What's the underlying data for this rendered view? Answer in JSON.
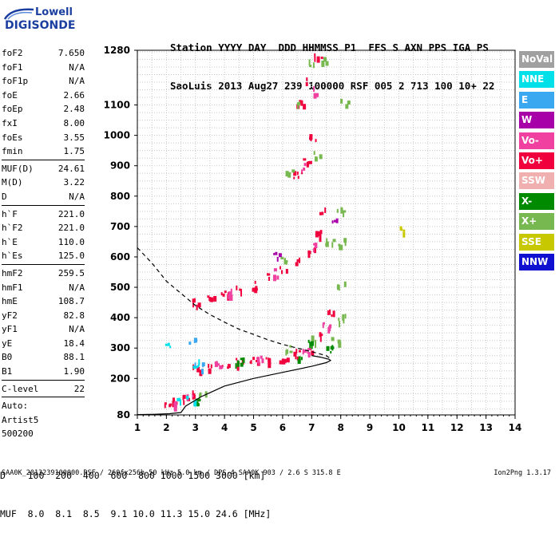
{
  "logo": {
    "line1": "Lowell",
    "line2": "DIGISONDE"
  },
  "header": {
    "line1": "Station YYYY DAY  DDD HHMMSS P1  FFS S AXN PPS IGA PS",
    "line2": "SaoLuis 2013 Aug27 239 100000 RSF 005 2 713 100 10+ 22"
  },
  "params": {
    "group1": [
      {
        "k": "foF2",
        "v": "7.650"
      },
      {
        "k": "foF1",
        "v": "N/A"
      },
      {
        "k": "foF1p",
        "v": "N/A"
      },
      {
        "k": "foE",
        "v": "2.66"
      },
      {
        "k": "foEp",
        "v": "2.48"
      },
      {
        "k": "fxI",
        "v": "8.00"
      },
      {
        "k": "foEs",
        "v": "3.55"
      },
      {
        "k": "fmin",
        "v": "1.75"
      }
    ],
    "group2": [
      {
        "k": "MUF(D)",
        "v": "24.61"
      },
      {
        "k": "M(D)",
        "v": "3.22"
      },
      {
        "k": "D",
        "v": "N/A"
      }
    ],
    "group3": [
      {
        "k": "h`F",
        "v": "221.0"
      },
      {
        "k": "h`F2",
        "v": "221.0"
      },
      {
        "k": "h`E",
        "v": "110.0"
      },
      {
        "k": "h`Es",
        "v": "125.0"
      }
    ],
    "group4": [
      {
        "k": "hmF2",
        "v": "259.5"
      },
      {
        "k": "hmF1",
        "v": "N/A"
      },
      {
        "k": "hmE",
        "v": "108.7"
      },
      {
        "k": "yF2",
        "v": "82.8"
      },
      {
        "k": "yF1",
        "v": "N/A"
      },
      {
        "k": "yE",
        "v": "18.4"
      },
      {
        "k": "B0",
        "v": "88.1"
      },
      {
        "k": "B1",
        "v": "1.90"
      }
    ],
    "group5": [
      {
        "k": "C-level",
        "v": "22"
      }
    ],
    "auto": [
      "Auto:",
      "Artist5",
      "500200"
    ]
  },
  "legend": [
    {
      "label": "NoVal",
      "color": "#a0a0a0"
    },
    {
      "label": "NNE",
      "color": "#00e0e8"
    },
    {
      "label": "E",
      "color": "#3aa8f0"
    },
    {
      "label": "W",
      "color": "#a800a8"
    },
    {
      "label": "Vo-",
      "color": "#f040a0"
    },
    {
      "label": "Vo+",
      "color": "#f0003c"
    },
    {
      "label": "SSW",
      "color": "#f0b0b0"
    },
    {
      "label": "X-",
      "color": "#008a00"
    },
    {
      "label": "X+",
      "color": "#78b850"
    },
    {
      "label": "SSE",
      "color": "#c8c800"
    },
    {
      "label": "NNW",
      "color": "#1010d0"
    }
  ],
  "bottom": {
    "line1": "D    100  200  400  600  800 1000 1500 3000 [km]",
    "line2": "MUF  8.0  8.1  8.5  9.1 10.0 11.3 15.0 24.6 [MHz]"
  },
  "footer": "SAA0K_2013239100000.RSF / 260fx256h 50 kHz 5.0 km / DPS-4 SAA0K 903 / 2.6 S 315.8 E",
  "footer_right": "Ion2Png 1.3.17",
  "chart_data": {
    "type": "scatter",
    "x": {
      "ticks": [
        1,
        2,
        3,
        4,
        5,
        6,
        7,
        8,
        9,
        10,
        11,
        12,
        13,
        14
      ],
      "range": [
        1,
        14
      ]
    },
    "y": {
      "ticks": [
        80,
        200,
        300,
        400,
        500,
        600,
        700,
        800,
        900,
        1000,
        1100,
        1280
      ],
      "range": [
        80,
        1280
      ]
    },
    "grid": true,
    "series": [
      {
        "style": "solid",
        "points": [
          [
            1.0,
            81
          ],
          [
            1.6,
            82
          ],
          [
            2.1,
            84
          ],
          [
            2.5,
            88
          ],
          [
            2.66,
            109
          ],
          [
            3.2,
            140
          ],
          [
            4.0,
            175
          ],
          [
            5.0,
            200
          ],
          [
            6.0,
            220
          ],
          [
            7.0,
            240
          ],
          [
            7.5,
            252
          ],
          [
            7.65,
            259
          ],
          [
            7.6,
            263
          ],
          [
            7.3,
            270
          ],
          [
            7.0,
            275
          ]
        ]
      },
      {
        "style": "dashed",
        "points": [
          [
            1.0,
            630
          ],
          [
            1.5,
            580
          ],
          [
            2.0,
            520
          ],
          [
            2.5,
            480
          ],
          [
            3.0,
            440
          ],
          [
            3.5,
            410
          ],
          [
            4.0,
            385
          ],
          [
            4.5,
            362
          ],
          [
            5.0,
            345
          ],
          [
            5.5,
            327
          ],
          [
            6.0,
            312
          ],
          [
            6.5,
            300
          ],
          [
            7.0,
            288
          ],
          [
            7.5,
            275
          ],
          [
            7.65,
            265
          ]
        ]
      }
    ],
    "echo_clusters": [
      {
        "legend": "Vo+",
        "points": [
          [
            2.0,
            120
          ],
          [
            2.3,
            125
          ],
          [
            2.6,
            135
          ],
          [
            2.9,
            150
          ],
          [
            3.0,
            240
          ],
          [
            3.5,
            245
          ],
          [
            4.0,
            250
          ],
          [
            4.5,
            255
          ],
          [
            5.0,
            260
          ],
          [
            5.5,
            265
          ],
          [
            6.0,
            272
          ],
          [
            6.5,
            285
          ],
          [
            7.0,
            300
          ],
          [
            7.3,
            340
          ],
          [
            7.6,
            420
          ],
          [
            3.0,
            455
          ],
          [
            3.5,
            470
          ],
          [
            4.0,
            480
          ],
          [
            4.5,
            495
          ],
          [
            5.0,
            510
          ],
          [
            5.5,
            535
          ],
          [
            6.0,
            565
          ],
          [
            6.5,
            590
          ],
          [
            7.0,
            620
          ],
          [
            7.2,
            680
          ],
          [
            7.4,
            760
          ],
          [
            6.5,
            870
          ],
          [
            6.8,
            920
          ],
          [
            7.0,
            1000
          ],
          [
            6.6,
            1110
          ],
          [
            6.9,
            1180
          ],
          [
            7.2,
            1260
          ]
        ]
      },
      {
        "legend": "Vo-",
        "points": [
          [
            2.2,
            122
          ],
          [
            2.8,
            140
          ],
          [
            3.8,
            248
          ],
          [
            5.2,
            262
          ],
          [
            6.8,
            295
          ],
          [
            7.5,
            380
          ],
          [
            4.2,
            485
          ],
          [
            5.8,
            550
          ],
          [
            7.1,
            640
          ],
          [
            6.7,
            900
          ],
          [
            7.0,
            1150
          ]
        ]
      },
      {
        "legend": "X+",
        "points": [
          [
            3.2,
            145
          ],
          [
            6.2,
            300
          ],
          [
            7.0,
            330
          ],
          [
            7.8,
            330
          ],
          [
            8.0,
            400
          ],
          [
            8.0,
            520
          ],
          [
            8.0,
            650
          ],
          [
            8.0,
            760
          ],
          [
            7.6,
            650
          ],
          [
            6.0,
            600
          ],
          [
            6.2,
            880
          ],
          [
            7.2,
            940
          ],
          [
            6.6,
            1100
          ],
          [
            7.4,
            1250
          ],
          [
            8.1,
            1110
          ],
          [
            7.0,
            1240
          ]
        ]
      },
      {
        "legend": "X-",
        "points": [
          [
            3.0,
            130
          ],
          [
            4.5,
            258
          ],
          [
            6.5,
            275
          ],
          [
            7.6,
            300
          ],
          [
            7.0,
            315
          ]
        ]
      },
      {
        "legend": "NNE",
        "points": [
          [
            2.0,
            320
          ],
          [
            2.8,
            135
          ],
          [
            3.0,
            250
          ],
          [
            2.4,
            130
          ]
        ]
      },
      {
        "legend": "E",
        "points": [
          [
            2.9,
            330
          ],
          [
            3.1,
            240
          ]
        ]
      },
      {
        "legend": "W",
        "points": [
          [
            5.8,
            610
          ],
          [
            7.8,
            720
          ]
        ]
      },
      {
        "legend": "SSE",
        "points": [
          [
            10.0,
            690
          ]
        ]
      }
    ]
  }
}
